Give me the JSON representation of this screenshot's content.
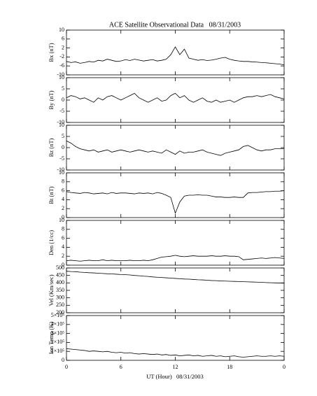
{
  "chart_data": {
    "type": "line",
    "title": "ACE Satellite Observational Data   08/31/2003",
    "xlabel": "UT (Hour)   08/31/2003",
    "color": "#000000",
    "xlim": [
      0,
      24
    ],
    "xticks": [
      0,
      6,
      12,
      18,
      {
        "value": 24,
        "label": "0"
      }
    ],
    "x": [
      0,
      0.5,
      1,
      1.5,
      2,
      2.5,
      3,
      3.5,
      4,
      4.5,
      5,
      5.5,
      6,
      6.5,
      7,
      7.5,
      8,
      8.5,
      9,
      9.5,
      10,
      10.5,
      11,
      11.5,
      12,
      12.5,
      13,
      13.5,
      14,
      14.5,
      15,
      15.5,
      16,
      16.5,
      17,
      17.5,
      18,
      18.5,
      19,
      19.5,
      20,
      20.5,
      21,
      21.5,
      22,
      22.5,
      23,
      23.5,
      24
    ],
    "panels": [
      {
        "ylabel": "Bx (nT)",
        "ylim": [
          -10,
          10
        ],
        "yticks": [
          -10,
          -6,
          -2,
          2,
          6,
          10
        ],
        "values": [
          -4,
          -4.5,
          -4.2,
          -4.8,
          -4.5,
          -4,
          -4.3,
          -3.5,
          -3.8,
          -3,
          -3.5,
          -4,
          -3.8,
          -3.2,
          -3.6,
          -3,
          -3.4,
          -3.8,
          -3.5,
          -3.2,
          -3.8,
          -3.5,
          -3,
          -1,
          2.5,
          -1,
          1.5,
          -2.5,
          -3,
          -3.5,
          -3.2,
          -3.6,
          -3.4,
          -3,
          -2.5,
          -2.2,
          -3,
          -3.5,
          -3.8,
          -4,
          -4,
          -4.2,
          -4.3,
          -4.5,
          -4.6,
          -4.8,
          -5,
          -5.2,
          -5.5
        ]
      },
      {
        "ylabel": "By (nT)",
        "ylim": [
          -10,
          10
        ],
        "yticks": [
          -10,
          -5,
          0,
          5,
          10
        ],
        "values": [
          1,
          2,
          1.5,
          0.5,
          1,
          0,
          -1,
          1,
          0,
          1.5,
          2,
          1,
          0,
          1,
          2,
          3,
          1,
          0,
          -1,
          0,
          1,
          -0.5,
          0,
          2,
          3,
          1,
          2,
          0,
          -1,
          0,
          1,
          -0.5,
          -1,
          0,
          -1,
          -0.5,
          0,
          -1,
          0,
          1,
          1.5,
          1.5,
          2,
          1.5,
          2,
          2.5,
          1.5,
          1,
          0.5
        ]
      },
      {
        "ylabel": "Bz (nT)",
        "ylim": [
          -10,
          10
        ],
        "yticks": [
          -10,
          -5,
          0,
          5,
          10
        ],
        "values": [
          3,
          2,
          0.5,
          -0.5,
          -1,
          -1.5,
          -1,
          -2,
          -1.5,
          -1,
          -2,
          -1.5,
          -1,
          -1.5,
          -2,
          -1.5,
          -1,
          -1.5,
          -2,
          -1.5,
          -2,
          -2.5,
          -1,
          -2,
          -3,
          -1.5,
          -2.5,
          -2,
          -2,
          -1.5,
          -1,
          -2,
          -2.5,
          -3,
          -3.5,
          -2.5,
          -2,
          -1.5,
          -1,
          0.5,
          1,
          0,
          -1,
          -1.5,
          -1,
          -1,
          -0.5,
          -0.5,
          -0.5
        ]
      },
      {
        "ylabel": "Bt (nT)",
        "ylim": [
          0,
          10
        ],
        "yticks": [
          0,
          2,
          4,
          6,
          8,
          10
        ],
        "values": [
          5.8,
          5.6,
          5.5,
          5.4,
          5.6,
          5.5,
          5.3,
          5.4,
          5.5,
          5.3,
          5.6,
          5.4,
          5.5,
          5.5,
          5.4,
          5.3,
          5.5,
          5.4,
          5.5,
          5.3,
          5.6,
          5.4,
          5,
          4.5,
          1,
          3.5,
          4.8,
          5,
          5,
          5.1,
          5,
          5,
          4.8,
          4.6,
          4.6,
          4.5,
          4.5,
          4.6,
          4.5,
          4.5,
          5.5,
          5.6,
          5.6,
          5.7,
          5.8,
          5.8,
          5.9,
          5.9,
          6
        ]
      },
      {
        "ylabel": "Den (1/cc)",
        "ylim": [
          0,
          10
        ],
        "yticks": [
          0,
          2,
          4,
          6,
          8,
          10
        ],
        "values": [
          1,
          1.1,
          1,
          0.9,
          1,
          1.1,
          1,
          1,
          1.2,
          1,
          1.1,
          1,
          1,
          1,
          1.1,
          1,
          1,
          1.1,
          1,
          1.2,
          1.5,
          1.8,
          1.9,
          2,
          2.2,
          2,
          1.9,
          2,
          2.1,
          2,
          2,
          2,
          2.1,
          2,
          2,
          2.1,
          2,
          2,
          1.9,
          1.2,
          1.3,
          1.4,
          1.5,
          1.6,
          1.5,
          1.6,
          1.7,
          1.6,
          1.5
        ]
      },
      {
        "ylabel": "Vel (Km/sec)",
        "ylim": [
          200,
          500
        ],
        "yticks": [
          200,
          250,
          300,
          350,
          400,
          450,
          500
        ],
        "values": [
          478,
          476,
          475,
          472,
          470,
          468,
          467,
          465,
          463,
          461,
          460,
          458,
          456,
          455,
          453,
          450,
          448,
          445,
          443,
          440,
          438,
          436,
          434,
          432,
          430,
          428,
          426,
          425,
          423,
          421,
          420,
          418,
          416,
          415,
          413,
          412,
          411,
          410,
          409,
          408,
          407,
          406,
          405,
          404,
          402,
          401,
          400,
          399,
          398
        ]
      },
      {
        "ylabel": "Ion Temp (K)",
        "ylim": [
          0,
          500000
        ],
        "yticks": [
          0,
          {
            "value": 100000,
            "label": "1×10⁵"
          },
          {
            "value": 200000,
            "label": "2×10⁵"
          },
          {
            "value": 300000,
            "label": "3×10⁵"
          },
          {
            "value": 400000,
            "label": "4×10⁵"
          },
          {
            "value": 500000,
            "label": "5×10⁵"
          }
        ],
        "values": [
          130000,
          125000,
          120000,
          115000,
          110000,
          100000,
          105000,
          100000,
          95000,
          100000,
          90000,
          85000,
          90000,
          80000,
          85000,
          75000,
          70000,
          75000,
          70000,
          65000,
          70000,
          60000,
          65000,
          55000,
          60000,
          50000,
          55000,
          60000,
          50000,
          55000,
          45000,
          50000,
          55000,
          45000,
          50000,
          40000,
          45000,
          50000,
          40000,
          35000,
          40000,
          45000,
          50000,
          45000,
          45000,
          50000,
          45000,
          50000,
          45000
        ]
      }
    ]
  }
}
